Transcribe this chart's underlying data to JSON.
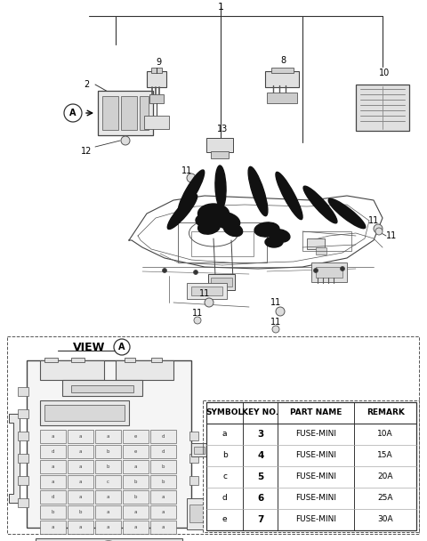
{
  "bg_color": "#f5f5f0",
  "fig_width": 4.8,
  "fig_height": 6.08,
  "dpi": 100,
  "table_headers": [
    "SYMBOL",
    "KEY NO.",
    "PART NAME",
    "REMARK"
  ],
  "table_rows": [
    [
      "a",
      "3",
      "FUSE-MINI",
      "10A"
    ],
    [
      "b",
      "4",
      "FUSE-MINI",
      "15A"
    ],
    [
      "c",
      "5",
      "FUSE-MINI",
      "20A"
    ],
    [
      "d",
      "6",
      "FUSE-MINI",
      "25A"
    ],
    [
      "e",
      "7",
      "FUSE-MINI",
      "30A"
    ]
  ],
  "wire_blobs": [
    [
      0.245,
      0.78,
      0.018,
      0.068,
      35
    ],
    [
      0.3,
      0.755,
      0.018,
      0.058,
      20
    ],
    [
      0.36,
      0.725,
      0.016,
      0.06,
      -5
    ],
    [
      0.43,
      0.72,
      0.015,
      0.062,
      -20
    ],
    [
      0.5,
      0.71,
      0.015,
      0.065,
      -30
    ],
    [
      0.57,
      0.695,
      0.015,
      0.068,
      -38
    ],
    [
      0.63,
      0.68,
      0.015,
      0.065,
      -50
    ],
    [
      0.69,
      0.662,
      0.015,
      0.06,
      -55
    ]
  ]
}
